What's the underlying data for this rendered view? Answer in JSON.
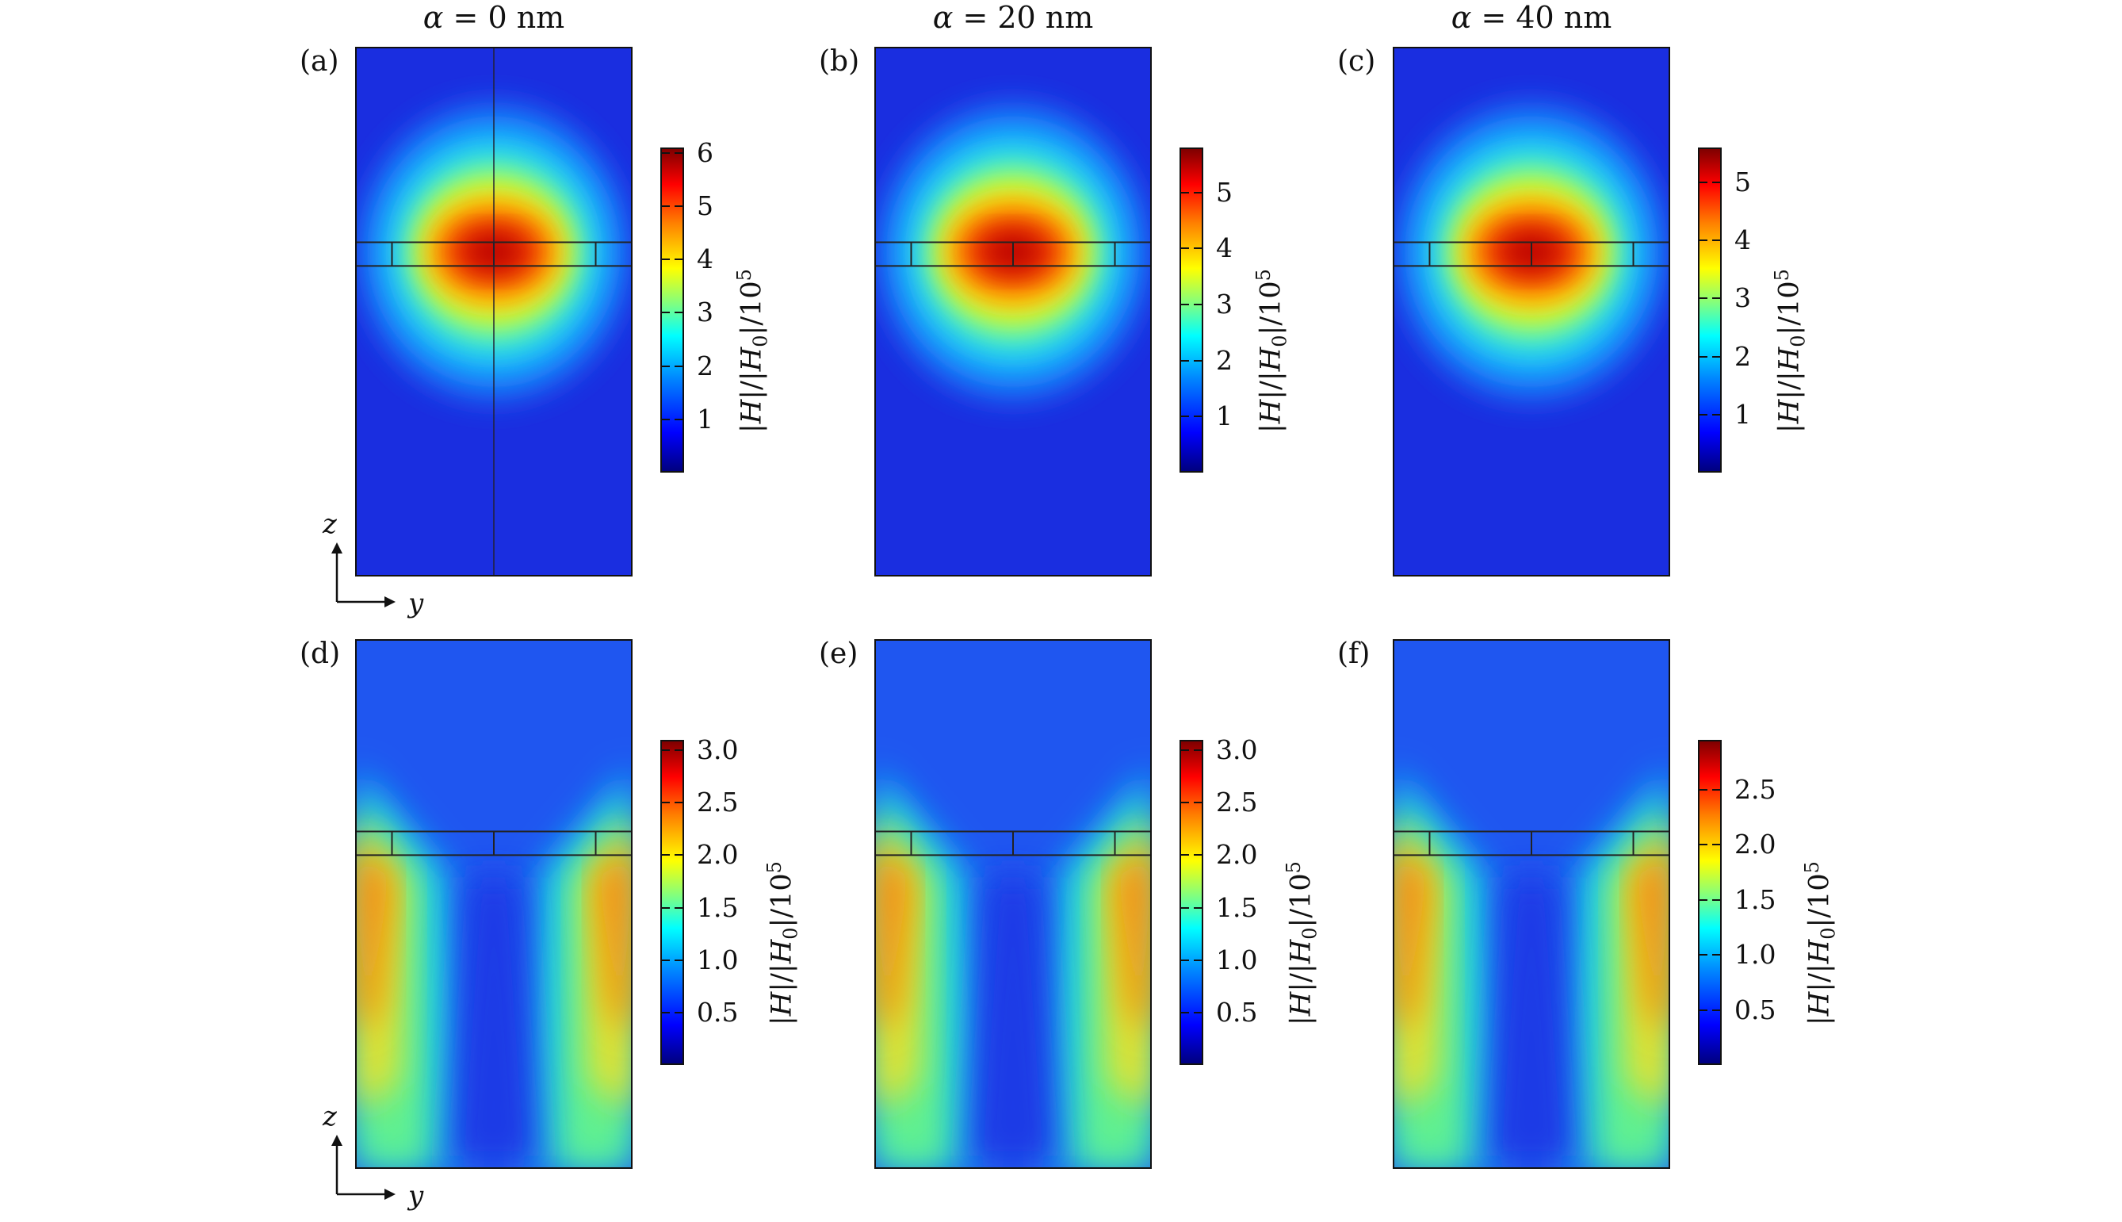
{
  "columns": [
    {
      "title_var": "α",
      "title_rest": " = 0 nm"
    },
    {
      "title_var": "α",
      "title_rest": " = 20 nm"
    },
    {
      "title_var": "α",
      "title_rest": " = 40 nm"
    }
  ],
  "panels": [
    {
      "letter": "(a)",
      "row": 0,
      "col": 0,
      "ticks": [
        "1",
        "2",
        "3",
        "4",
        "5",
        "6"
      ],
      "tick_values": [
        1,
        2,
        3,
        4,
        5,
        6
      ],
      "cmax": 6.1
    },
    {
      "letter": "(b)",
      "row": 0,
      "col": 1,
      "ticks": [
        "1",
        "2",
        "3",
        "4",
        "5"
      ],
      "tick_values": [
        1,
        2,
        3,
        4,
        5
      ],
      "cmax": 5.8
    },
    {
      "letter": "(c)",
      "row": 0,
      "col": 2,
      "ticks": [
        "1",
        "2",
        "3",
        "4",
        "5"
      ],
      "tick_values": [
        1,
        2,
        3,
        4,
        5
      ],
      "cmax": 5.6
    },
    {
      "letter": "(d)",
      "row": 1,
      "col": 0,
      "ticks": [
        "0.5",
        "1.0",
        "1.5",
        "2.0",
        "2.5",
        "3.0"
      ],
      "tick_values": [
        0.5,
        1.0,
        1.5,
        2.0,
        2.5,
        3.0
      ],
      "cmax": 3.1
    },
    {
      "letter": "(e)",
      "row": 1,
      "col": 1,
      "ticks": [
        "0.5",
        "1.0",
        "1.5",
        "2.0",
        "2.5",
        "3.0"
      ],
      "tick_values": [
        0.5,
        1.0,
        1.5,
        2.0,
        2.5,
        3.0
      ],
      "cmax": 3.1
    },
    {
      "letter": "(f)",
      "row": 1,
      "col": 2,
      "ticks": [
        "0.5",
        "1.0",
        "1.5",
        "2.0",
        "2.5"
      ],
      "tick_values": [
        0.5,
        1.0,
        1.5,
        2.0,
        2.5
      ],
      "cmax": 2.95
    }
  ],
  "colorbar_label": {
    "bar1": "|",
    "H1": "H",
    "mid": "|/|",
    "H0": "H",
    "sub0": "0",
    "end": "|/10",
    "sup": "5"
  },
  "axes": {
    "z": "z",
    "y": "y"
  },
  "colors": {
    "jet_low": "#00007f",
    "jet_high": "#7f0000"
  }
}
